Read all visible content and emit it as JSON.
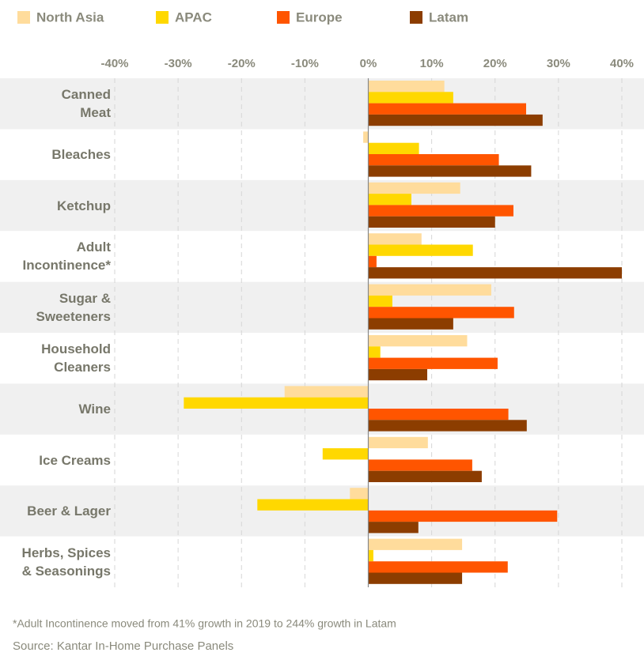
{
  "chart_data": {
    "type": "hbar",
    "categories": [
      "Canned\nMeat",
      "Bleaches",
      "Ketchup",
      "Adult\nIncontinence*",
      "Sugar &\nSweeteners",
      "Household\nCleaners",
      "Wine",
      "Ice Creams",
      "Beer & Lager",
      "Herbs, Spices\n& Seasonings"
    ],
    "series": [
      {
        "name": "North Asia",
        "color": "#ffdc9c",
        "values": [
          12.0,
          -0.8,
          14.5,
          8.4,
          19.4,
          15.6,
          -13.2,
          9.4,
          -2.9,
          14.8
        ]
      },
      {
        "name": "APAC",
        "color": "#ffd800",
        "values": [
          13.4,
          8.0,
          6.8,
          16.5,
          3.8,
          1.9,
          -29.1,
          -7.2,
          -17.5,
          0.8
        ]
      },
      {
        "name": "Europe",
        "color": "#ff5500",
        "values": [
          24.9,
          20.6,
          22.9,
          1.3,
          23.0,
          20.4,
          22.1,
          16.4,
          29.8,
          22.0
        ]
      },
      {
        "name": "Latam",
        "color": "#8c3d00",
        "values": [
          27.5,
          25.7,
          20.0,
          40.0,
          13.4,
          9.3,
          25.0,
          17.9,
          7.9,
          14.8
        ]
      }
    ],
    "xlim": [
      -40,
      40
    ],
    "xticks": [
      {
        "value": -40,
        "label": "-40%"
      },
      {
        "value": -30,
        "label": "-30%"
      },
      {
        "value": -20,
        "label": "-20%"
      },
      {
        "value": -10,
        "label": "-10%"
      },
      {
        "value": 0,
        "label": "0%"
      },
      {
        "value": 10,
        "label": "10%"
      },
      {
        "value": 20,
        "label": "20%"
      },
      {
        "value": 30,
        "label": "30%"
      },
      {
        "value": 40,
        "label": "40%"
      }
    ],
    "grid": true,
    "annotations": [
      "*Adult Incontinence moved from 41% growth in 2019 to 244% growth in Latam",
      "Source: Kantar In-Home Purchase Panels"
    ]
  }
}
